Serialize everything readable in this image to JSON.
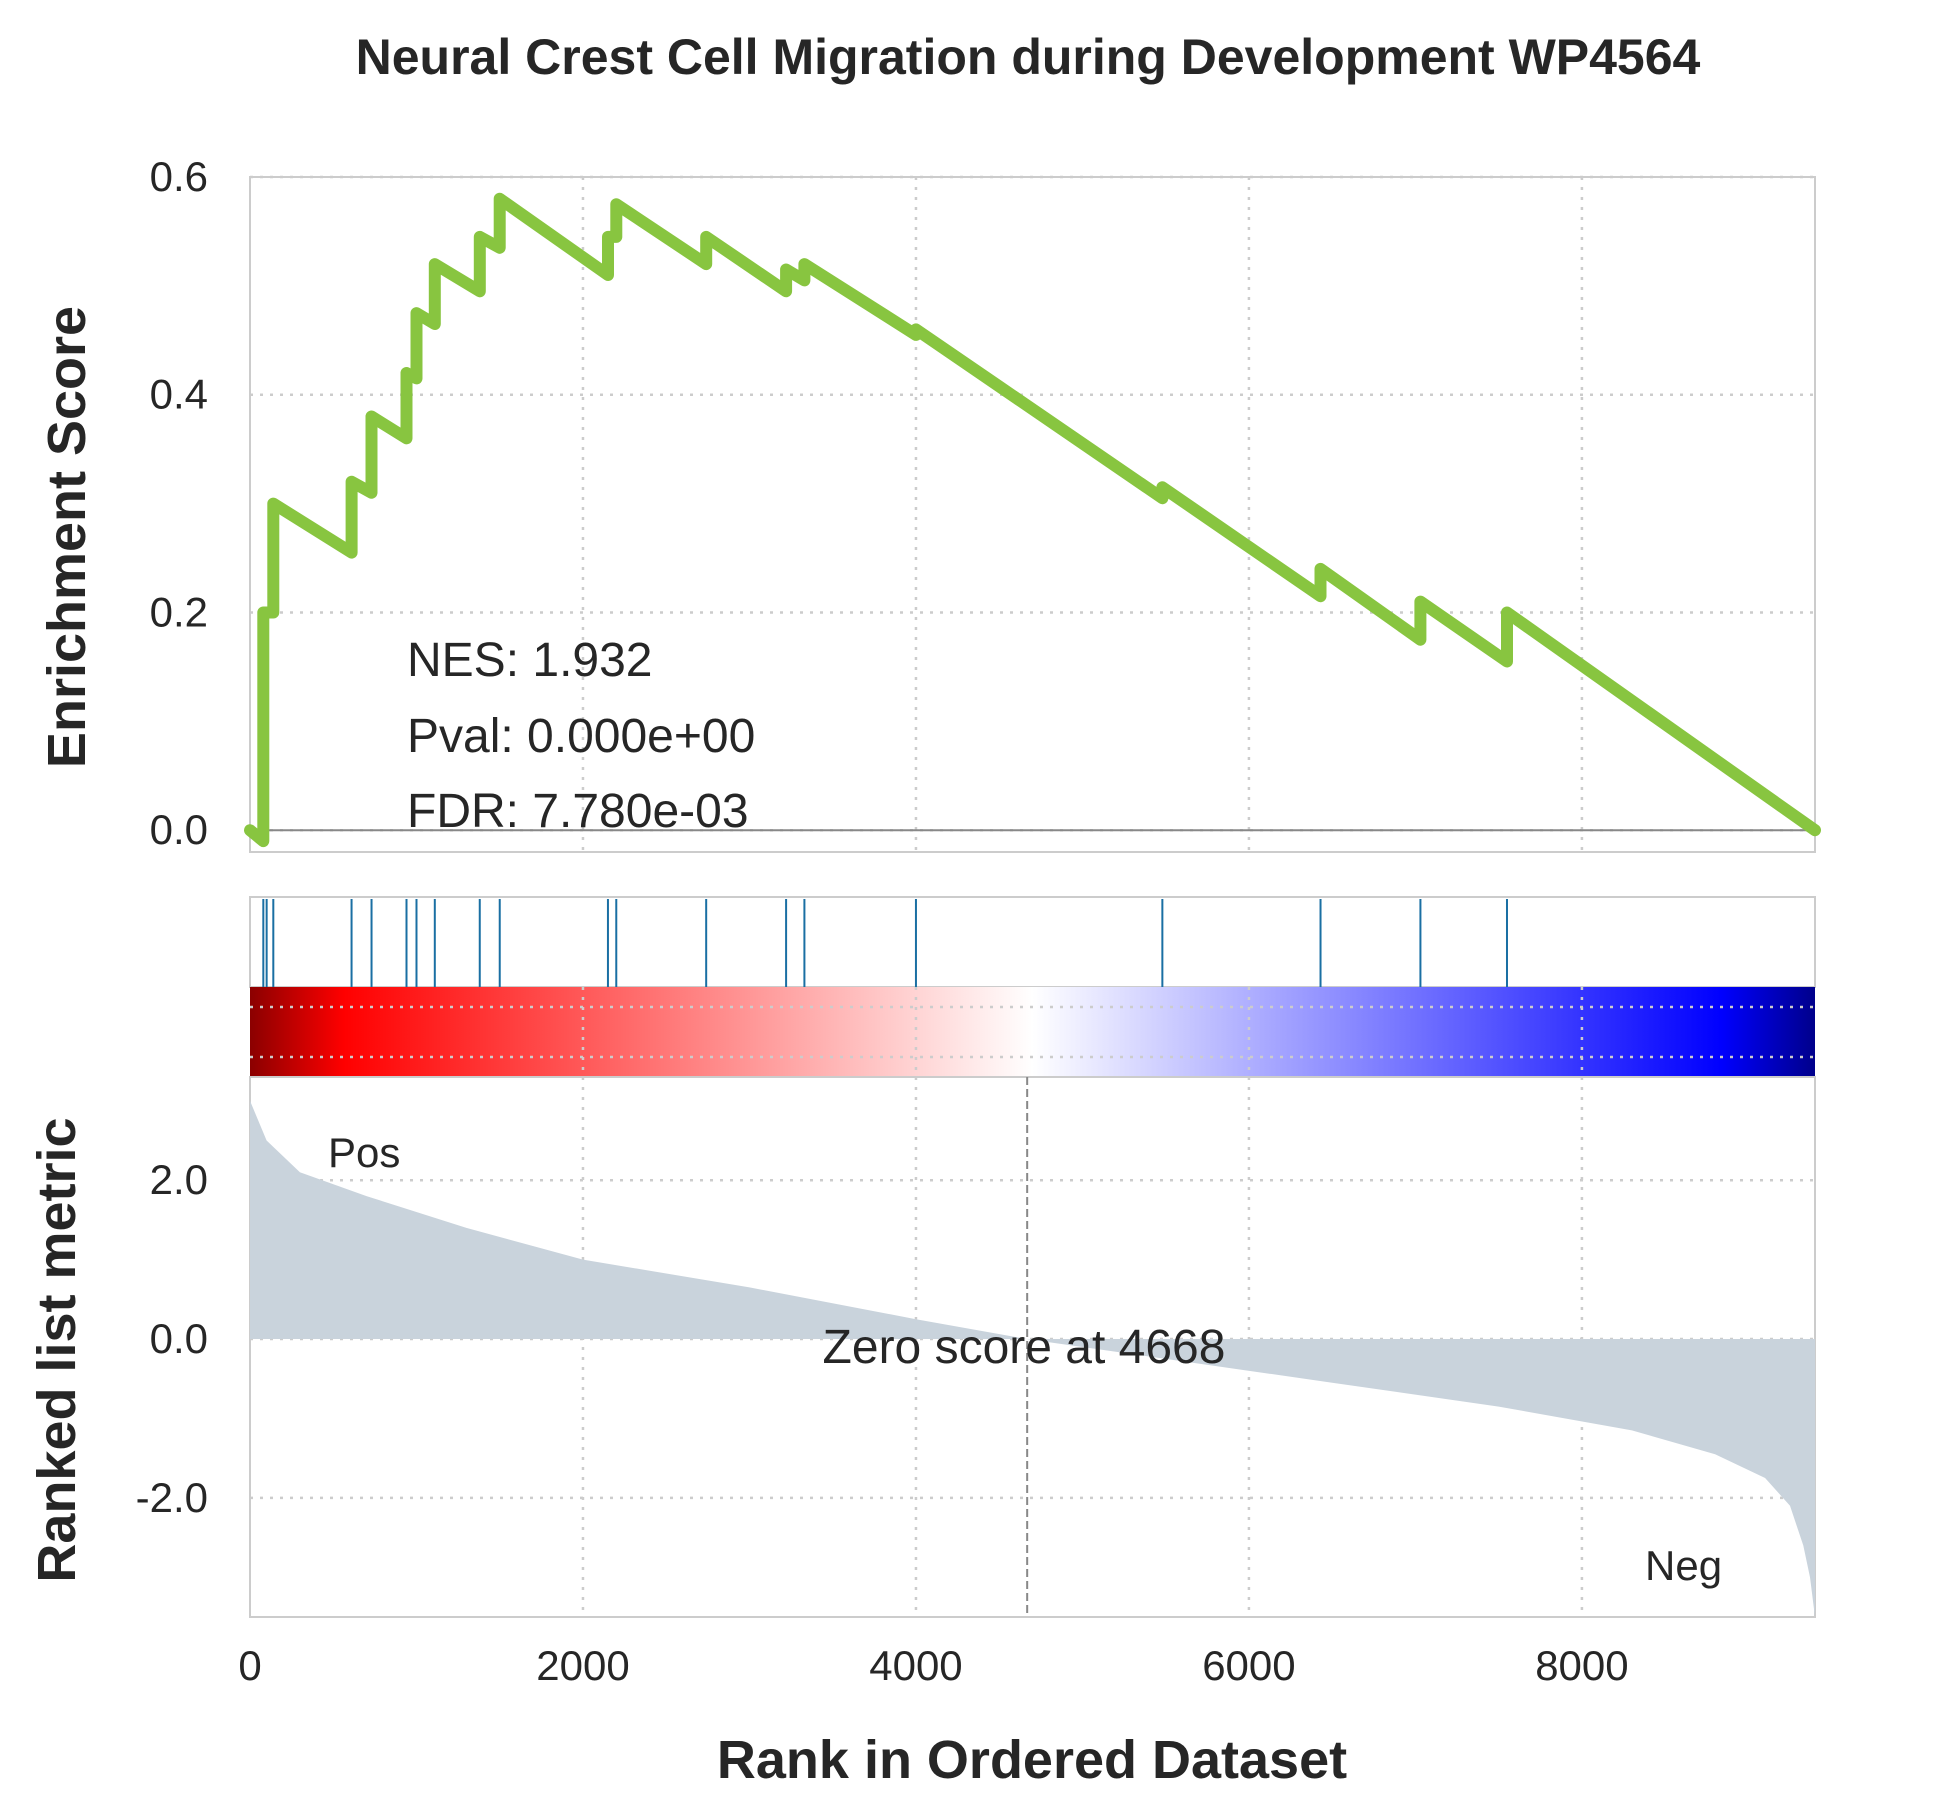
{
  "chart_data": {
    "type": "line",
    "title": "Neural Crest Cell Migration during Development WP4564",
    "xlabel": "Rank in Ordered Dataset",
    "ylabel_top": "Enrichment Score",
    "ylabel_bottom": "Ranked list metric",
    "xlim": [
      0,
      9400
    ],
    "ylim_top": [
      -0.02,
      0.6
    ],
    "ylim_bottom": [
      -3.5,
      3.3
    ],
    "x_ticks": [
      0,
      2000,
      4000,
      6000,
      8000
    ],
    "y_ticks_top": [
      0.0,
      0.2,
      0.4,
      0.6
    ],
    "y_ticks_bottom": [
      -2.0,
      0.0,
      2.0
    ],
    "stats": {
      "nes": "NES: 1.932",
      "pval": "Pval: 0.000e+00",
      "fdr": "FDR: 7.780e-03"
    },
    "pos_label": "Pos",
    "neg_label": "Neg",
    "zero_label": "Zero score at 4668",
    "zero_rank": 4668,
    "n_genes": 9400,
    "hits": [
      80,
      100,
      140,
      610,
      730,
      940,
      1000,
      1110,
      1380,
      1500,
      2150,
      2200,
      2740,
      3220,
      3330,
      4000,
      5480,
      6430,
      7030,
      7550
    ],
    "es_curve": [
      [
        0,
        0.0
      ],
      [
        80,
        -0.01
      ],
      [
        80,
        0.2
      ],
      [
        100,
        0.2
      ],
      [
        140,
        0.2
      ],
      [
        140,
        0.3
      ],
      [
        610,
        0.255
      ],
      [
        610,
        0.32
      ],
      [
        730,
        0.31
      ],
      [
        730,
        0.38
      ],
      [
        940,
        0.36
      ],
      [
        940,
        0.42
      ],
      [
        1000,
        0.415
      ],
      [
        1000,
        0.475
      ],
      [
        1110,
        0.465
      ],
      [
        1110,
        0.52
      ],
      [
        1380,
        0.495
      ],
      [
        1380,
        0.545
      ],
      [
        1500,
        0.535
      ],
      [
        1500,
        0.58
      ],
      [
        2150,
        0.51
      ],
      [
        2150,
        0.545
      ],
      [
        2200,
        0.545
      ],
      [
        2200,
        0.575
      ],
      [
        2740,
        0.52
      ],
      [
        2740,
        0.545
      ],
      [
        3220,
        0.495
      ],
      [
        3220,
        0.515
      ],
      [
        3330,
        0.505
      ],
      [
        3330,
        0.52
      ],
      [
        4000,
        0.455
      ],
      [
        4000,
        0.46
      ],
      [
        5480,
        0.305
      ],
      [
        5480,
        0.315
      ],
      [
        6430,
        0.215
      ],
      [
        6430,
        0.24
      ],
      [
        7030,
        0.175
      ],
      [
        7030,
        0.21
      ],
      [
        7550,
        0.155
      ],
      [
        7550,
        0.2
      ],
      [
        9400,
        0.0
      ]
    ],
    "metric_profile": [
      [
        0,
        3.0
      ],
      [
        100,
        2.5
      ],
      [
        300,
        2.1
      ],
      [
        700,
        1.8
      ],
      [
        1300,
        1.4
      ],
      [
        2000,
        1.0
      ],
      [
        3000,
        0.65
      ],
      [
        4000,
        0.25
      ],
      [
        4668,
        0.0
      ],
      [
        5500,
        -0.25
      ],
      [
        6500,
        -0.55
      ],
      [
        7500,
        -0.85
      ],
      [
        8300,
        -1.15
      ],
      [
        8800,
        -1.45
      ],
      [
        9100,
        -1.75
      ],
      [
        9250,
        -2.1
      ],
      [
        9330,
        -2.6
      ],
      [
        9370,
        -3.0
      ],
      [
        9400,
        -3.5
      ]
    ],
    "colors": {
      "es_line": "#88c540",
      "hit": "#1a6fa3",
      "metric_fill": "#c9d3dc",
      "pos": "#ff0000",
      "neg": "#0000ff",
      "grid": "#cccccc",
      "zero_line": "#888888"
    },
    "grid": true
  }
}
